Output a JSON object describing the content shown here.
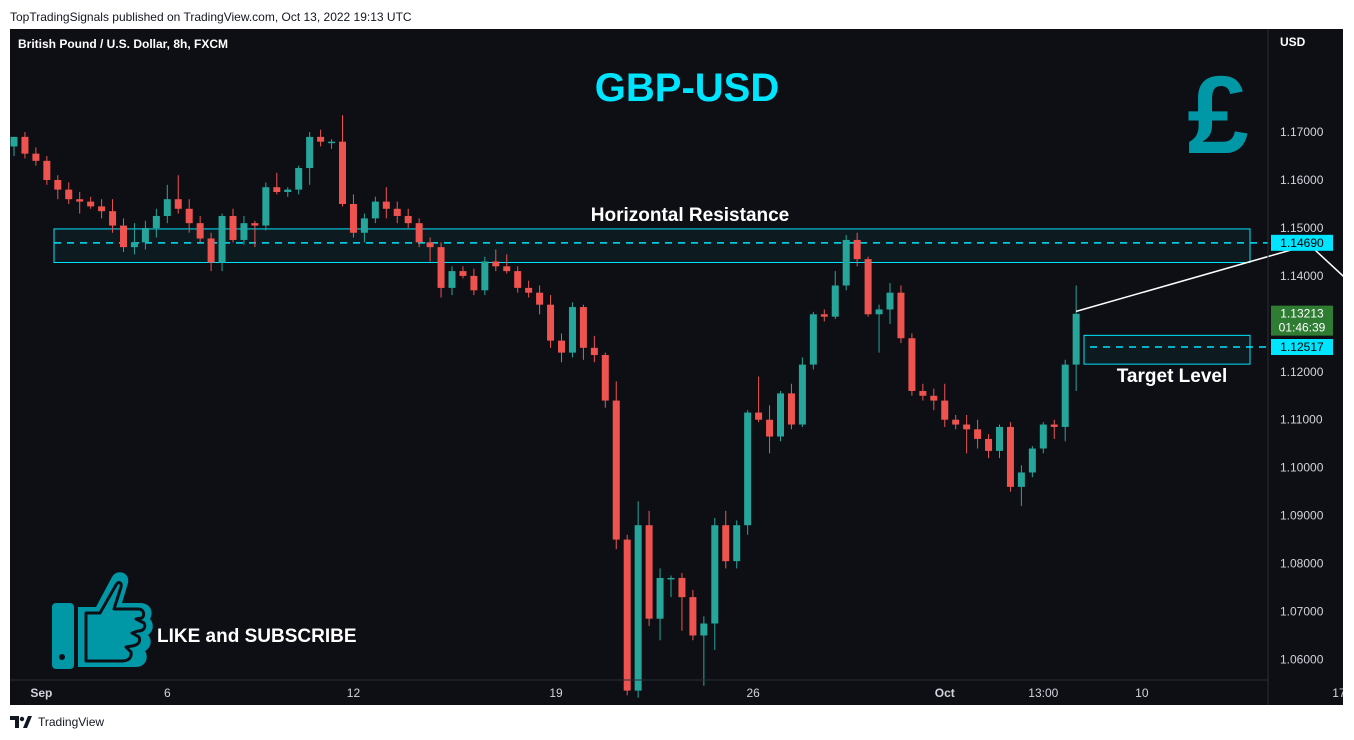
{
  "header": {
    "published": "TopTradingSignals published on TradingView.com, Oct 13, 2022 19:13 UTC"
  },
  "footer": {
    "brand": "TradingView"
  },
  "colors": {
    "up": "#26a69a",
    "down": "#ef5350",
    "accent": "#00e5ff",
    "background": "#0e0f14"
  },
  "chart_data": {
    "type": "candlestick",
    "symbol_label": "British Pound / U.S. Dollar, 8h, FXCM",
    "title": "GBP-USD",
    "currency": "USD",
    "y_ticks": [
      "1.17000",
      "1.16000",
      "1.15000",
      "1.14000",
      "1.13000",
      "1.12000",
      "1.11000",
      "1.10000",
      "1.09000",
      "1.08000",
      "1.07000",
      "1.06000"
    ],
    "x_ticks": [
      {
        "label": "Sep",
        "index": 2.5,
        "bold": true
      },
      {
        "label": "6",
        "index": 14
      },
      {
        "label": "12",
        "index": 31
      },
      {
        "label": "19",
        "index": 49.5
      },
      {
        "label": "26",
        "index": 67.5
      },
      {
        "label": "Oct",
        "index": 85,
        "bold": true
      },
      {
        "label": "13:00",
        "index": 94
      },
      {
        "label": "10",
        "index": 103
      },
      {
        "label": "17",
        "index": 121
      }
    ],
    "ylim": [
      1.0505,
      1.1915
    ],
    "resistance": {
      "label": "Horizontal Resistance",
      "level": 1.1469,
      "level_label": "1.14690",
      "zone": [
        1.1428,
        1.1498
      ]
    },
    "target": {
      "label": "Target Level",
      "level": 1.12517,
      "level_label": "1.12517",
      "zone": [
        1.1216,
        1.1276
      ]
    },
    "last_price": {
      "label": "1.13213",
      "countdown": "01:46:39",
      "value": 1.13213
    },
    "projection": [
      {
        "index": 118.3,
        "price": 1.1465
      },
      {
        "index": 128.3,
        "price": 1.1253
      }
    ],
    "candles": [
      [
        1.167,
        1.169,
        1.165,
        1.169
      ],
      [
        1.169,
        1.17,
        1.1645,
        1.1655
      ],
      [
        1.1655,
        1.1668,
        1.163,
        1.164
      ],
      [
        1.164,
        1.165,
        1.159,
        1.16
      ],
      [
        1.16,
        1.161,
        1.156,
        1.158
      ],
      [
        1.158,
        1.1595,
        1.155,
        1.156
      ],
      [
        1.156,
        1.1575,
        1.153,
        1.1555
      ],
      [
        1.1555,
        1.1565,
        1.154,
        1.1545
      ],
      [
        1.1545,
        1.156,
        1.152,
        1.1535
      ],
      [
        1.1535,
        1.156,
        1.149,
        1.1505
      ],
      [
        1.1505,
        1.152,
        1.145,
        1.146
      ],
      [
        1.146,
        1.151,
        1.1445,
        1.147
      ],
      [
        1.147,
        1.1515,
        1.1455,
        1.15
      ],
      [
        1.15,
        1.154,
        1.148,
        1.1525
      ],
      [
        1.1525,
        1.159,
        1.151,
        1.156
      ],
      [
        1.156,
        1.161,
        1.153,
        1.154
      ],
      [
        1.154,
        1.156,
        1.149,
        1.151
      ],
      [
        1.151,
        1.1525,
        1.147,
        1.1478
      ],
      [
        1.1478,
        1.149,
        1.141,
        1.1428
      ],
      [
        1.1428,
        1.153,
        1.141,
        1.1525
      ],
      [
        1.1525,
        1.154,
        1.147,
        1.1475
      ],
      [
        1.1475,
        1.1525,
        1.1465,
        1.151
      ],
      [
        1.151,
        1.1515,
        1.146,
        1.1505
      ],
      [
        1.1505,
        1.1595,
        1.1495,
        1.1585
      ],
      [
        1.1585,
        1.1615,
        1.157,
        1.1575
      ],
      [
        1.1575,
        1.1585,
        1.1565,
        1.158
      ],
      [
        1.158,
        1.163,
        1.157,
        1.1625
      ],
      [
        1.1625,
        1.17,
        1.159,
        1.169
      ],
      [
        1.169,
        1.1705,
        1.167,
        1.168
      ],
      [
        1.168,
        1.1685,
        1.1665,
        1.168
      ],
      [
        1.168,
        1.1735,
        1.1545,
        1.155
      ],
      [
        1.155,
        1.157,
        1.148,
        1.149
      ],
      [
        1.149,
        1.153,
        1.147,
        1.152
      ],
      [
        1.152,
        1.1565,
        1.151,
        1.1555
      ],
      [
        1.1555,
        1.1585,
        1.152,
        1.154
      ],
      [
        1.154,
        1.1555,
        1.151,
        1.1525
      ],
      [
        1.1525,
        1.154,
        1.15,
        1.151
      ],
      [
        1.151,
        1.152,
        1.146,
        1.147
      ],
      [
        1.147,
        1.148,
        1.143,
        1.146
      ],
      [
        1.146,
        1.147,
        1.1355,
        1.1375
      ],
      [
        1.1375,
        1.142,
        1.136,
        1.141
      ],
      [
        1.141,
        1.142,
        1.1395,
        1.14
      ],
      [
        1.14,
        1.1415,
        1.136,
        1.137
      ],
      [
        1.137,
        1.144,
        1.136,
        1.143
      ],
      [
        1.143,
        1.1455,
        1.141,
        1.142
      ],
      [
        1.142,
        1.1445,
        1.1405,
        1.141
      ],
      [
        1.141,
        1.142,
        1.1365,
        1.1375
      ],
      [
        1.1375,
        1.139,
        1.1355,
        1.1365
      ],
      [
        1.1365,
        1.138,
        1.132,
        1.134
      ],
      [
        1.134,
        1.136,
        1.125,
        1.1265
      ],
      [
        1.1265,
        1.128,
        1.122,
        1.124
      ],
      [
        1.124,
        1.1345,
        1.123,
        1.1335
      ],
      [
        1.1335,
        1.134,
        1.1225,
        1.125
      ],
      [
        1.125,
        1.1275,
        1.122,
        1.1235
      ],
      [
        1.1235,
        1.124,
        1.1125,
        1.114
      ],
      [
        1.114,
        1.118,
        1.083,
        1.085
      ],
      [
        1.085,
        1.086,
        1.0525,
        1.0535
      ],
      [
        1.0535,
        1.093,
        1.052,
        1.088
      ],
      [
        1.088,
        1.091,
        1.067,
        1.0685
      ],
      [
        1.0685,
        1.079,
        1.064,
        1.077
      ],
      [
        1.077,
        1.0775,
        1.073,
        1.077
      ],
      [
        1.077,
        1.078,
        1.066,
        1.073
      ],
      [
        1.073,
        1.0745,
        1.064,
        1.065
      ],
      [
        1.065,
        1.069,
        1.0545,
        1.0675
      ],
      [
        1.0675,
        1.0895,
        1.062,
        1.088
      ],
      [
        1.088,
        1.091,
        1.079,
        1.0805
      ],
      [
        1.0805,
        1.089,
        1.079,
        1.088
      ],
      [
        1.088,
        1.112,
        1.086,
        1.1115
      ],
      [
        1.1115,
        1.119,
        1.1095,
        1.11
      ],
      [
        1.11,
        1.113,
        1.103,
        1.1065
      ],
      [
        1.1065,
        1.116,
        1.1055,
        1.1155
      ],
      [
        1.1155,
        1.1175,
        1.108,
        1.109
      ],
      [
        1.109,
        1.123,
        1.1085,
        1.1215
      ],
      [
        1.1215,
        1.1325,
        1.1205,
        1.132
      ],
      [
        1.132,
        1.133,
        1.1305,
        1.1315
      ],
      [
        1.1315,
        1.141,
        1.131,
        1.138
      ],
      [
        1.138,
        1.1485,
        1.137,
        1.1475
      ],
      [
        1.1475,
        1.149,
        1.142,
        1.1435
      ],
      [
        1.1435,
        1.144,
        1.1315,
        1.132
      ],
      [
        1.132,
        1.134,
        1.124,
        1.133
      ],
      [
        1.133,
        1.1385,
        1.13,
        1.1365
      ],
      [
        1.1365,
        1.138,
        1.126,
        1.127
      ],
      [
        1.127,
        1.128,
        1.115,
        1.116
      ],
      [
        1.116,
        1.1175,
        1.114,
        1.115
      ],
      [
        1.115,
        1.1165,
        1.112,
        1.114
      ],
      [
        1.114,
        1.1175,
        1.1085,
        1.11
      ],
      [
        1.11,
        1.111,
        1.108,
        1.109
      ],
      [
        1.109,
        1.111,
        1.103,
        1.108
      ],
      [
        1.108,
        1.11,
        1.104,
        1.106
      ],
      [
        1.106,
        1.107,
        1.102,
        1.1035
      ],
      [
        1.1035,
        1.109,
        1.102,
        1.1085
      ],
      [
        1.1085,
        1.1095,
        1.095,
        1.096
      ],
      [
        1.096,
        1.1005,
        1.092,
        1.099
      ],
      [
        1.099,
        1.1045,
        1.098,
        1.104
      ],
      [
        1.104,
        1.1095,
        1.103,
        1.109
      ],
      [
        1.109,
        1.11,
        1.106,
        1.1085
      ],
      [
        1.1085,
        1.1225,
        1.1055,
        1.1215
      ],
      [
        1.1215,
        1.138,
        1.116,
        1.1321
      ]
    ]
  },
  "overlay": {
    "cta": "LIKE and SUBSCRIBE"
  },
  "icons": {
    "currency": "pound-sign-icon",
    "thumb": "thumbs-up-icon",
    "logo": "tradingview-logo-icon"
  }
}
